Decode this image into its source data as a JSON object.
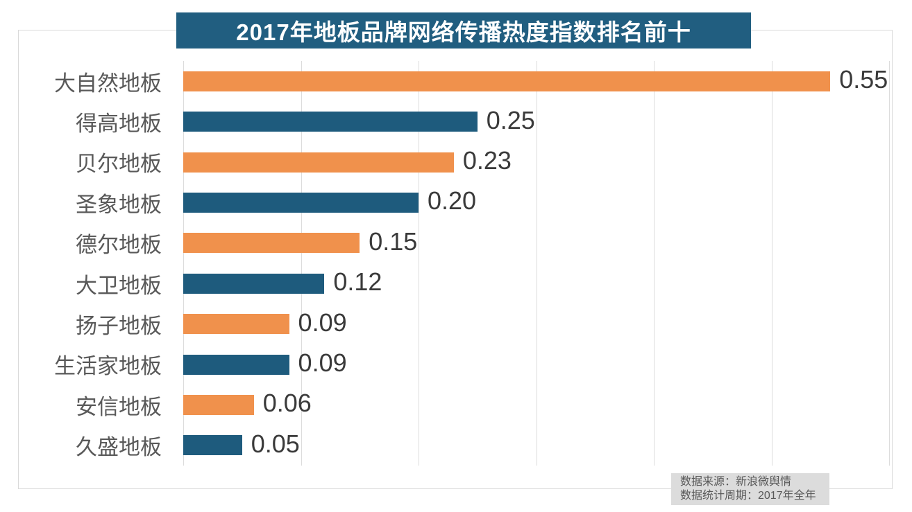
{
  "title": "2017年地板品牌网络传播热度指数排名前十",
  "source": {
    "line1": "数据来源：新浪微舆情",
    "line2": "数据统计周期：2017年全年"
  },
  "colors": {
    "banner_bg": "#215e80",
    "banner_text": "#ffffff",
    "bar_orange": "#f0914c",
    "bar_teal": "#1e5b7d",
    "gridline": "#dcdcdc",
    "frame_border": "#d9d9d9",
    "category_text": "#595959",
    "value_text": "#3a3a3a",
    "source_bg": "#dcdcdc",
    "source_text": "#595959"
  },
  "chart_data": {
    "type": "bar",
    "orientation": "horizontal",
    "title": "2017年地板品牌网络传播热度指数排名前十",
    "categories": [
      "大自然地板",
      "得高地板",
      "贝尔地板",
      "圣象地板",
      "德尔地板",
      "大卫地板",
      "扬子地板",
      "生活家地板",
      "安信地板",
      "久盛地板"
    ],
    "values": [
      0.55,
      0.25,
      0.23,
      0.2,
      0.15,
      0.12,
      0.09,
      0.09,
      0.06,
      0.05
    ],
    "value_labels": [
      "0.55",
      "0.25",
      "0.23",
      "0.20",
      "0.15",
      "0.12",
      "0.09",
      "0.09",
      "0.06",
      "0.05"
    ],
    "bar_colors": [
      "#f0914c",
      "#1e5b7d",
      "#f0914c",
      "#1e5b7d",
      "#f0914c",
      "#1e5b7d",
      "#f0914c",
      "#1e5b7d",
      "#f0914c",
      "#1e5b7d"
    ],
    "xlim": [
      0,
      0.6
    ],
    "gridline_interval": 0.1,
    "grid": true,
    "legend": false,
    "data_labels": true
  }
}
